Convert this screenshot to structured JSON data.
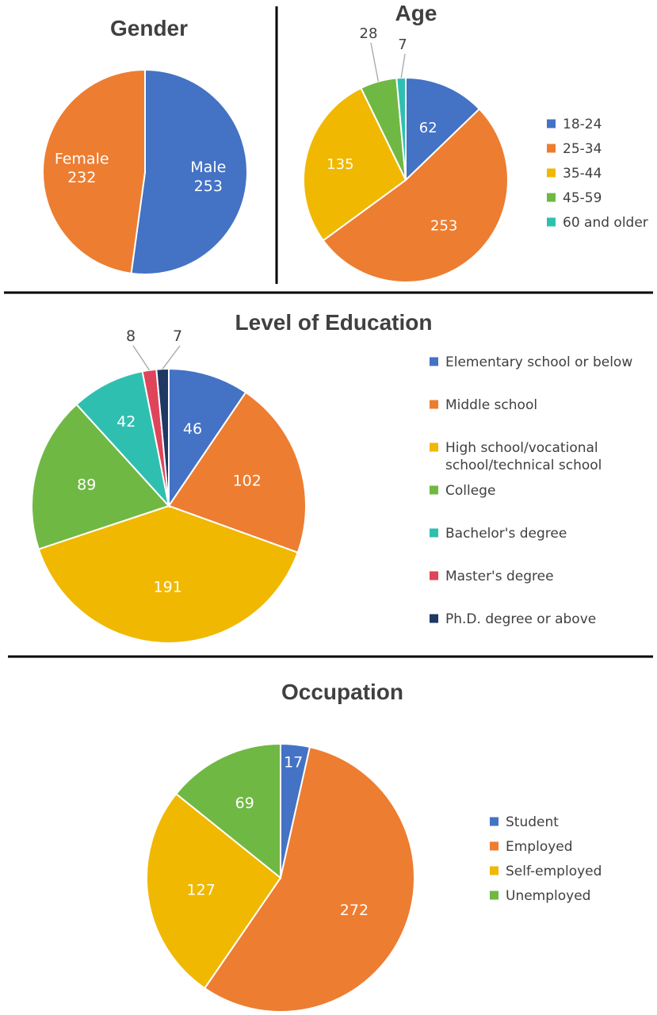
{
  "chart_data": [
    {
      "type": "pie",
      "title": "Gender",
      "categories": [
        "Male",
        "Female"
      ],
      "values": [
        253,
        232
      ],
      "colors": [
        "#4472C4",
        "#ED7D31"
      ],
      "legend": "none",
      "data_labels": [
        "Male\n253",
        "Female\n232"
      ]
    },
    {
      "type": "pie",
      "title": "Age",
      "categories": [
        "18-24",
        "25-34",
        "35-44",
        "45-59",
        "60 and older"
      ],
      "values": [
        62,
        253,
        135,
        28,
        7
      ],
      "colors": [
        "#4472C4",
        "#ED7D31",
        "#F0B800",
        "#70B844",
        "#2FBFB0"
      ],
      "legend": "right"
    },
    {
      "type": "pie",
      "title": "Level of Education",
      "categories": [
        "Elementary school or below",
        "Middle school",
        "High school/vocational school/technical school",
        "College",
        "Bachelor's degree",
        "Master's degree",
        "Ph.D. degree or above"
      ],
      "legend_lines": [
        [
          "Elementary school or below"
        ],
        [
          "Middle school"
        ],
        [
          "High school/vocational",
          "school/technical school"
        ],
        [
          "College"
        ],
        [
          "Bachelor's degree"
        ],
        [
          "Master's degree"
        ],
        [
          "Ph.D. degree or above"
        ]
      ],
      "values": [
        46,
        102,
        191,
        89,
        42,
        8,
        7
      ],
      "colors": [
        "#4472C4",
        "#ED7D31",
        "#F0B800",
        "#70B844",
        "#2FBFB0",
        "#E0445A",
        "#1F3864"
      ],
      "legend": "right"
    },
    {
      "type": "pie",
      "title": "Occupation",
      "categories": [
        "Student",
        "Employed",
        "Self-employed",
        "Unemployed"
      ],
      "values": [
        17,
        272,
        127,
        69
      ],
      "colors": [
        "#4472C4",
        "#ED7D31",
        "#F0B800",
        "#70B844"
      ],
      "legend": "right"
    }
  ]
}
